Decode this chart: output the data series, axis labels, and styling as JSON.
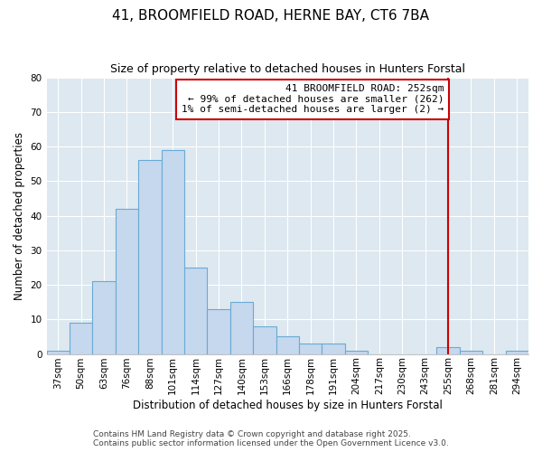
{
  "title": "41, BROOMFIELD ROAD, HERNE BAY, CT6 7BA",
  "subtitle": "Size of property relative to detached houses in Hunters Forstal",
  "xlabel": "Distribution of detached houses by size in Hunters Forstal",
  "ylabel": "Number of detached properties",
  "bin_labels": [
    "37sqm",
    "50sqm",
    "63sqm",
    "76sqm",
    "88sqm",
    "101sqm",
    "114sqm",
    "127sqm",
    "140sqm",
    "153sqm",
    "166sqm",
    "178sqm",
    "191sqm",
    "204sqm",
    "217sqm",
    "230sqm",
    "243sqm",
    "255sqm",
    "268sqm",
    "281sqm",
    "294sqm"
  ],
  "bar_heights": [
    1,
    9,
    21,
    42,
    56,
    59,
    25,
    13,
    15,
    8,
    5,
    3,
    3,
    1,
    0,
    0,
    0,
    2,
    1,
    0,
    1
  ],
  "bar_color": "#c5d8ee",
  "bar_edge_color": "#6aaad4",
  "ylim": [
    0,
    80
  ],
  "yticks": [
    0,
    10,
    20,
    30,
    40,
    50,
    60,
    70,
    80
  ],
  "vline_x": 17.0,
  "vline_color": "#cc0000",
  "annotation_title": "41 BROOMFIELD ROAD: 252sqm",
  "annotation_line1": "← 99% of detached houses are smaller (262)",
  "annotation_line2": "1% of semi-detached houses are larger (2) →",
  "annotation_box_color": "#cc0000",
  "footer1": "Contains HM Land Registry data © Crown copyright and database right 2025.",
  "footer2": "Contains public sector information licensed under the Open Government Licence v3.0.",
  "bg_color": "#ffffff",
  "plot_bg_color": "#dde8f0",
  "grid_color": "#ffffff",
  "title_fontsize": 11,
  "subtitle_fontsize": 9,
  "axis_label_fontsize": 8.5,
  "tick_fontsize": 7.5,
  "annotation_fontsize": 8,
  "footer_fontsize": 6.5
}
